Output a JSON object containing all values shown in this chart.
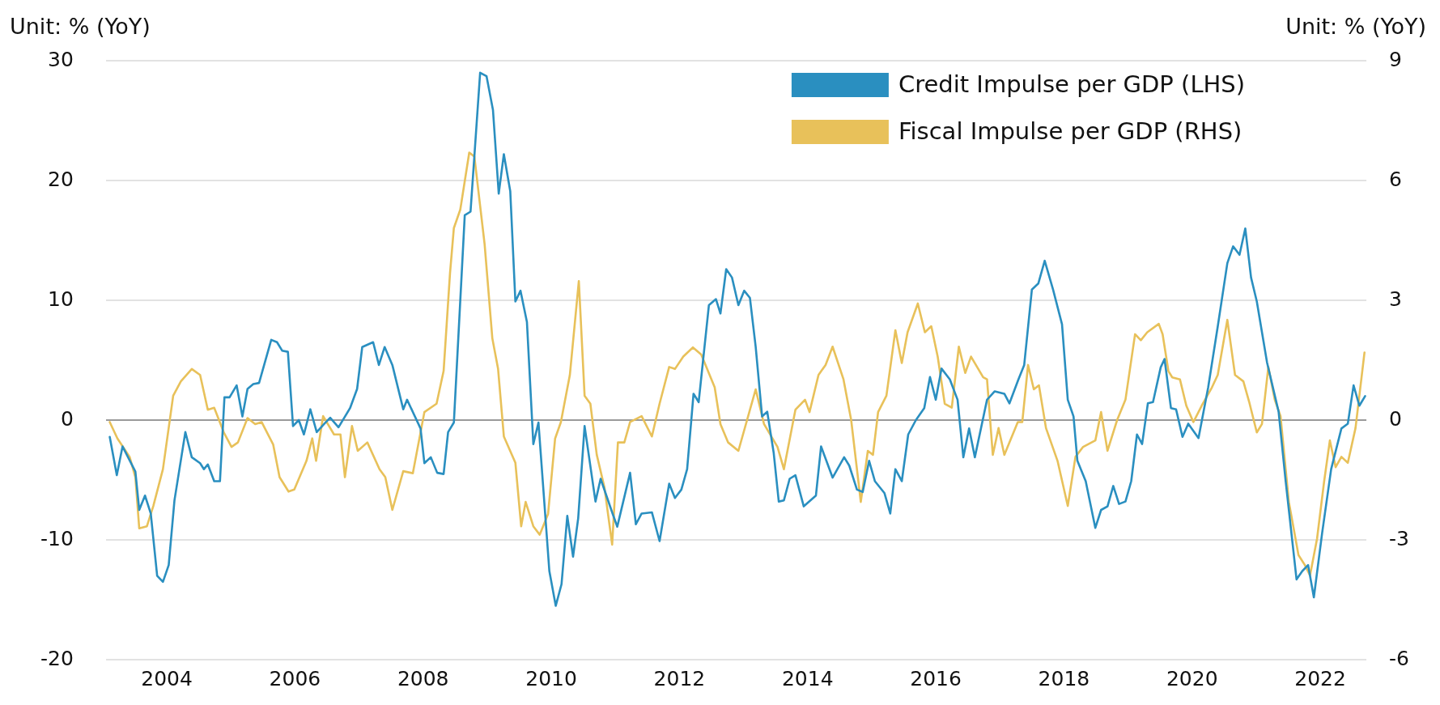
{
  "chart_data": {
    "type": "line",
    "ylabel": "Unit: % (YoY)",
    "y2label": "Unit: % (YoY)",
    "xlim": [
      2003.05,
      2022.72
    ],
    "xticks": [
      2004,
      2006,
      2008,
      2010,
      2012,
      2014,
      2016,
      2018,
      2020,
      2022
    ],
    "ylim": [
      -20,
      30
    ],
    "yticks": [
      -20,
      -10,
      0,
      10,
      20,
      30
    ],
    "y2lim": [
      -6,
      9
    ],
    "y2ticks": [
      -6,
      -3,
      0,
      3,
      6,
      9
    ],
    "grid": "y",
    "legend": "top right",
    "marker": "none",
    "line_style": "solid",
    "series": [
      {
        "name": "Credit Impulse per GDP (LHS)",
        "color": "#2a8fc0",
        "x": [
          2003.11,
          2003.22,
          2003.31,
          2003.51,
          2003.57,
          2003.66,
          2003.75,
          2003.85,
          2003.94,
          2004.03,
          2004.12,
          2004.29,
          2004.39,
          2004.52,
          2004.58,
          2004.64,
          2004.74,
          2004.83,
          2004.9,
          2004.98,
          2005.09,
          2005.18,
          2005.26,
          2005.35,
          2005.44,
          2005.63,
          2005.72,
          2005.8,
          2005.89,
          2005.97,
          2006.06,
          2006.14,
          2006.24,
          2006.34,
          2006.46,
          2006.55,
          2006.68,
          2006.86,
          2006.97,
          2007.05,
          2007.22,
          2007.31,
          2007.4,
          2007.52,
          2007.69,
          2007.75,
          2007.96,
          2008.02,
          2008.12,
          2008.22,
          2008.32,
          2008.39,
          2008.48,
          2008.65,
          2008.74,
          2008.89,
          2008.99,
          2009.09,
          2009.18,
          2009.26,
          2009.36,
          2009.44,
          2009.52,
          2009.62,
          2009.72,
          2009.8,
          2009.97,
          2010.07,
          2010.16,
          2010.25,
          2010.34,
          2010.42,
          2010.52,
          2010.69,
          2010.77,
          2010.86,
          2010.95,
          2011.03,
          2011.23,
          2011.32,
          2011.41,
          2011.57,
          2011.69,
          2011.84,
          2011.93,
          2012.03,
          2012.12,
          2012.22,
          2012.3,
          2012.46,
          2012.57,
          2012.64,
          2012.73,
          2012.82,
          2012.92,
          2013.01,
          2013.1,
          2013.19,
          2013.29,
          2013.37,
          2013.47,
          2013.55,
          2013.63,
          2013.72,
          2013.81,
          2013.94,
          2014.13,
          2014.21,
          2014.39,
          2014.57,
          2014.65,
          2014.77,
          2014.86,
          2014.96,
          2015.05,
          2015.2,
          2015.29,
          2015.37,
          2015.47,
          2015.57,
          2015.69,
          2015.82,
          2015.91,
          2016.0,
          2016.09,
          2016.22,
          2016.34,
          2016.43,
          2016.52,
          2016.61,
          2016.8,
          2016.92,
          2017.07,
          2017.15,
          2017.29,
          2017.38,
          2017.5,
          2017.6,
          2017.7,
          2017.83,
          2017.97,
          2018.06,
          2018.15,
          2018.21,
          2018.34,
          2018.49,
          2018.58,
          2018.68,
          2018.77,
          2018.86,
          2018.96,
          2019.05,
          2019.14,
          2019.22,
          2019.31,
          2019.39,
          2019.51,
          2019.57,
          2019.67,
          2019.75,
          2019.85,
          2019.94,
          2020.1,
          2020.25,
          2020.4,
          2020.55,
          2020.64,
          2020.74,
          2020.83,
          2020.92,
          2021.01,
          2021.17,
          2021.35,
          2021.46,
          2021.63,
          2021.72,
          2021.81,
          2021.9,
          2022.03,
          2022.17,
          2022.33,
          2022.43,
          2022.52,
          2022.61,
          2022.7
        ],
        "values": [
          -1.4,
          -4.6,
          -2.2,
          -4.3,
          -7.5,
          -6.3,
          -7.8,
          -13.0,
          -13.5,
          -12.1,
          -6.7,
          -1.0,
          -3.1,
          -3.6,
          -4.1,
          -3.7,
          -5.1,
          -5.1,
          1.9,
          1.9,
          2.9,
          0.3,
          2.6,
          3.0,
          3.1,
          6.7,
          6.5,
          5.8,
          5.7,
          -0.5,
          0,
          -1.2,
          0.9,
          -1.0,
          -0.3,
          0.2,
          -0.6,
          1.0,
          2.6,
          6.1,
          6.5,
          4.6,
          6.1,
          4.6,
          0.9,
          1.7,
          -0.7,
          -3.6,
          -3.1,
          -4.4,
          -4.5,
          -1.0,
          -0.2,
          17.1,
          17.4,
          29.0,
          28.7,
          25.9,
          18.9,
          22.2,
          19.1,
          9.9,
          10.8,
          8.2,
          -2.0,
          -0.2,
          -12.6,
          -15.5,
          -13.7,
          -8.0,
          -11.4,
          -8.2,
          -0.5,
          -6.8,
          -4.9,
          -6.3,
          -7.7,
          -8.9,
          -4.4,
          -8.7,
          -7.8,
          -7.7,
          -10.1,
          -5.3,
          -6.5,
          -5.8,
          -4.1,
          2.2,
          1.5,
          9.6,
          10.1,
          8.9,
          12.6,
          11.9,
          9.6,
          10.8,
          10.2,
          6.1,
          0.3,
          0.7,
          -2.7,
          -6.8,
          -6.7,
          -4.9,
          -4.6,
          -7.2,
          -6.3,
          -2.2,
          -4.8,
          -3.1,
          -3.8,
          -5.8,
          -6.0,
          -3.4,
          -5.1,
          -6.1,
          -7.8,
          -4.1,
          -5.1,
          -1.2,
          0,
          1.0,
          3.6,
          1.7,
          4.3,
          3.4,
          1.7,
          -3.1,
          -0.7,
          -3.1,
          1.7,
          2.4,
          2.2,
          1.4,
          3.4,
          4.6,
          10.9,
          11.4,
          13.3,
          10.9,
          8.0,
          1.7,
          0.3,
          -3.4,
          -5.1,
          -9.0,
          -7.5,
          -7.2,
          -5.5,
          -7.0,
          -6.8,
          -5.1,
          -1.2,
          -2.0,
          1.4,
          1.5,
          4.4,
          5.1,
          1.0,
          0.9,
          -1.4,
          -0.3,
          -1.5,
          2.7,
          7.8,
          13.1,
          14.5,
          13.8,
          16.0,
          11.9,
          9.9,
          4.8,
          0.7,
          -5.1,
          -13.3,
          -12.6,
          -12.1,
          -14.8,
          -9.4,
          -4.1,
          -0.7,
          -0.3,
          2.9,
          1.2,
          2.0
        ]
      },
      {
        "name": "Fiscal Impulse per GDP (RHS)",
        "color": "#e8c15a",
        "axis": "y2",
        "x": [
          2003.11,
          2003.23,
          2003.42,
          2003.51,
          2003.57,
          2003.69,
          2003.79,
          2003.94,
          2004.1,
          2004.22,
          2004.39,
          2004.52,
          2004.64,
          2004.74,
          2004.89,
          2005.01,
          2005.11,
          2005.26,
          2005.38,
          2005.48,
          2005.66,
          2005.76,
          2005.9,
          2005.99,
          2006.18,
          2006.27,
          2006.33,
          2006.44,
          2006.61,
          2006.71,
          2006.78,
          2006.89,
          2006.98,
          2007.13,
          2007.32,
          2007.41,
          2007.52,
          2007.69,
          2007.84,
          2008.02,
          2008.21,
          2008.32,
          2008.42,
          2008.48,
          2008.58,
          2008.72,
          2008.8,
          2008.96,
          2009.08,
          2009.17,
          2009.26,
          2009.44,
          2009.53,
          2009.6,
          2009.72,
          2009.82,
          2009.95,
          2010.06,
          2010.15,
          2010.29,
          2010.43,
          2010.52,
          2010.61,
          2010.71,
          2010.83,
          2010.95,
          2011.04,
          2011.14,
          2011.23,
          2011.41,
          2011.57,
          2011.69,
          2011.84,
          2011.93,
          2012.06,
          2012.21,
          2012.34,
          2012.55,
          2012.64,
          2012.76,
          2012.92,
          2013.19,
          2013.32,
          2013.53,
          2013.63,
          2013.81,
          2013.96,
          2014.03,
          2014.17,
          2014.28,
          2014.39,
          2014.56,
          2014.68,
          2014.83,
          2014.94,
          2015.02,
          2015.1,
          2015.23,
          2015.37,
          2015.47,
          2015.56,
          2015.72,
          2015.83,
          2015.93,
          2016.03,
          2016.14,
          2016.25,
          2016.36,
          2016.46,
          2016.55,
          2016.74,
          2016.8,
          2016.89,
          2016.98,
          2017.07,
          2017.28,
          2017.35,
          2017.44,
          2017.53,
          2017.61,
          2017.72,
          2017.9,
          2018.06,
          2018.18,
          2018.3,
          2018.49,
          2018.58,
          2018.68,
          2018.83,
          2018.96,
          2019.11,
          2019.2,
          2019.3,
          2019.48,
          2019.54,
          2019.63,
          2019.69,
          2019.81,
          2019.91,
          2020.02,
          2020.15,
          2020.31,
          2020.4,
          2020.55,
          2020.67,
          2020.8,
          2020.89,
          2021.01,
          2021.09,
          2021.19,
          2021.29,
          2021.38,
          2021.51,
          2021.66,
          2021.76,
          2021.84,
          2021.95,
          2022.06,
          2022.15,
          2022.24,
          2022.33,
          2022.43,
          2022.55,
          2022.69
        ],
        "values": [
          -0.05,
          -0.46,
          -0.92,
          -1.43,
          -2.71,
          -2.66,
          -2.15,
          -1.23,
          0.61,
          0.97,
          1.28,
          1.13,
          0.26,
          0.31,
          -0.31,
          -0.67,
          -0.56,
          0.05,
          -0.1,
          -0.05,
          -0.61,
          -1.43,
          -1.79,
          -1.74,
          -1.02,
          -0.46,
          -1.02,
          0.1,
          -0.36,
          -0.36,
          -1.43,
          -0.15,
          -0.77,
          -0.56,
          -1.23,
          -1.43,
          -2.25,
          -1.28,
          -1.33,
          0.2,
          0.41,
          1.23,
          3.68,
          4.81,
          5.27,
          6.7,
          6.6,
          4.4,
          2.05,
          1.28,
          -0.41,
          -1.07,
          -2.66,
          -2.05,
          -2.66,
          -2.87,
          -2.35,
          -0.46,
          -0.05,
          1.13,
          3.48,
          0.61,
          0.41,
          -0.87,
          -1.69,
          -3.12,
          -0.56,
          -0.56,
          -0.05,
          0.1,
          -0.41,
          0.41,
          1.33,
          1.28,
          1.59,
          1.82,
          1.64,
          0.82,
          -0.1,
          -0.56,
          -0.77,
          0.77,
          -0.1,
          -0.67,
          -1.23,
          0.26,
          0.51,
          0.2,
          1.13,
          1.38,
          1.84,
          1.02,
          0,
          -2.05,
          -0.77,
          -0.87,
          0.2,
          0.61,
          2.25,
          1.43,
          2.2,
          2.92,
          2.2,
          2.35,
          1.59,
          0.41,
          0.31,
          1.84,
          1.18,
          1.59,
          1.07,
          1.02,
          -0.87,
          -0.2,
          -0.87,
          -0.05,
          -0.05,
          1.38,
          0.77,
          0.87,
          -0.2,
          -1.02,
          -2.15,
          -0.92,
          -0.67,
          -0.51,
          0.2,
          -0.77,
          0,
          0.51,
          2.15,
          2.0,
          2.2,
          2.41,
          2.15,
          1.23,
          1.07,
          1.02,
          0.36,
          -0.05,
          0.36,
          0.82,
          1.13,
          2.51,
          1.13,
          0.97,
          0.46,
          -0.31,
          -0.1,
          1.33,
          0.51,
          0.1,
          -2.05,
          -3.38,
          -3.63,
          -3.89,
          -2.97,
          -1.54,
          -0.51,
          -1.18,
          -0.92,
          -1.07,
          -0.2,
          1.69
        ]
      }
    ]
  }
}
